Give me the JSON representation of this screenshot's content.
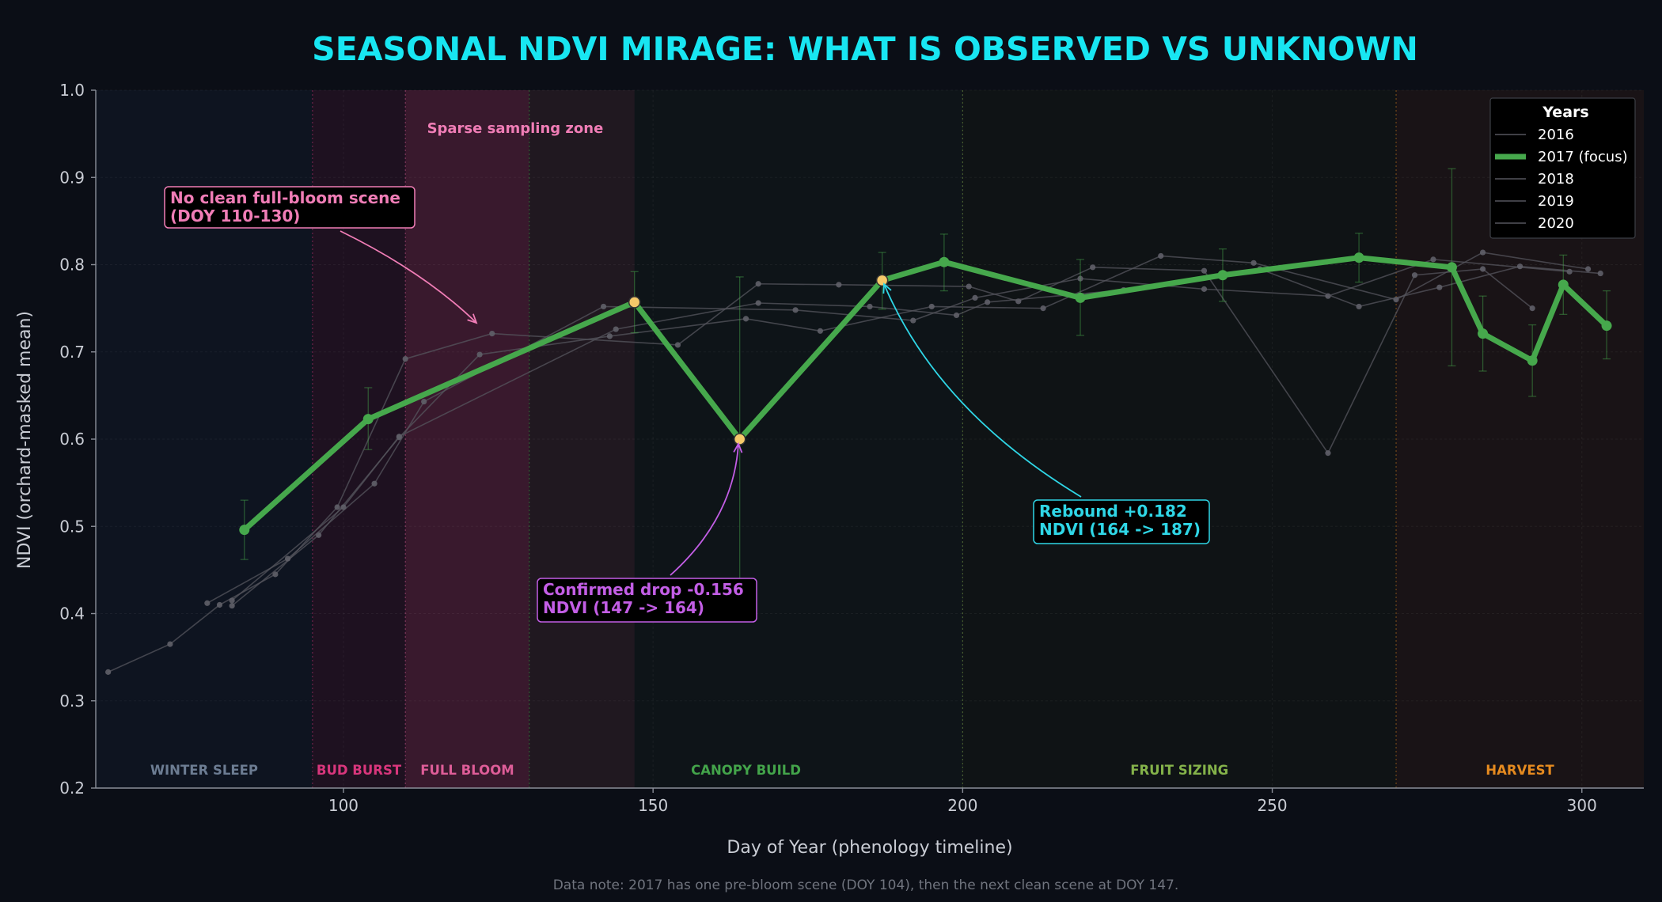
{
  "colors": {
    "background": "#0b0e16",
    "plot_bg": "#0e1218",
    "title": "#18e6f2",
    "focus": "#46a84c",
    "other_years": "#55555e",
    "highlight_point": "#f5c96a",
    "pink": "#f07db6",
    "purple": "#c35ee6",
    "cyan": "#2fd6e6",
    "axis_text": "#c9ccd4",
    "note_text": "#70747e"
  },
  "chart_data": {
    "type": "line",
    "title": "SEASONAL NDVI MIRAGE: WHAT IS OBSERVED VS UNKNOWN",
    "xlabel": "Day of Year (phenology timeline)",
    "ylabel": "NDVI (orchard-masked mean)",
    "xlim": [
      60,
      310
    ],
    "ylim": [
      0.2,
      1.0
    ],
    "xticks": [
      100,
      150,
      200,
      250,
      300
    ],
    "yticks": [
      0.2,
      0.3,
      0.4,
      0.5,
      0.6,
      0.7,
      0.8,
      0.9,
      1.0
    ],
    "grid": true,
    "legend": {
      "title": "Years",
      "position": "top-right"
    },
    "series": [
      {
        "name": "2016",
        "focus": false,
        "x": [
          62,
          72,
          80,
          89,
          99,
          110,
          124,
          154,
          167,
          180,
          201,
          209,
          221,
          239,
          259,
          273,
          284,
          292
        ],
        "y": [
          0.333,
          0.365,
          0.41,
          0.445,
          0.522,
          0.692,
          0.721,
          0.708,
          0.778,
          0.777,
          0.775,
          0.758,
          0.797,
          0.793,
          0.584,
          0.788,
          0.795,
          0.75
        ]
      },
      {
        "name": "2017 (focus)",
        "focus": true,
        "x": [
          84,
          104,
          147,
          164,
          187,
          197,
          219,
          242,
          264,
          279,
          284,
          292,
          297,
          304
        ],
        "y": [
          0.496,
          0.623,
          0.757,
          0.6,
          0.782,
          0.803,
          0.762,
          0.788,
          0.808,
          0.797,
          0.721,
          0.69,
          0.777,
          0.73
        ]
      },
      {
        "name": "2018",
        "focus": false,
        "x": [
          82,
          96,
          109,
          122,
          143,
          165,
          177,
          195,
          213,
          232,
          247,
          270,
          284,
          301
        ],
        "y": [
          0.409,
          0.49,
          0.602,
          0.697,
          0.718,
          0.738,
          0.724,
          0.752,
          0.75,
          0.81,
          0.802,
          0.76,
          0.814,
          0.795
        ]
      },
      {
        "name": "2019",
        "focus": false,
        "x": [
          78,
          91,
          105,
          113,
          142,
          173,
          192,
          202,
          219,
          239,
          259,
          276,
          298
        ],
        "y": [
          0.412,
          0.463,
          0.549,
          0.643,
          0.752,
          0.748,
          0.736,
          0.762,
          0.784,
          0.772,
          0.764,
          0.806,
          0.792
        ]
      },
      {
        "name": "2020",
        "focus": false,
        "x": [
          82,
          100,
          109,
          144,
          167,
          185,
          199,
          204,
          226,
          248,
          264,
          277,
          290,
          303
        ],
        "y": [
          0.415,
          0.522,
          0.603,
          0.726,
          0.756,
          0.752,
          0.742,
          0.757,
          0.771,
          0.795,
          0.752,
          0.774,
          0.798,
          0.79
        ]
      }
    ],
    "error_bars": [
      {
        "x": 84,
        "lo": 0.462,
        "hi": 0.53
      },
      {
        "x": 104,
        "lo": 0.588,
        "hi": 0.659
      },
      {
        "x": 147,
        "lo": 0.722,
        "hi": 0.792
      },
      {
        "x": 164,
        "lo": 0.415,
        "hi": 0.786
      },
      {
        "x": 187,
        "lo": 0.749,
        "hi": 0.814
      },
      {
        "x": 197,
        "lo": 0.77,
        "hi": 0.835
      },
      {
        "x": 219,
        "lo": 0.719,
        "hi": 0.806
      },
      {
        "x": 242,
        "lo": 0.758,
        "hi": 0.818
      },
      {
        "x": 264,
        "lo": 0.78,
        "hi": 0.836
      },
      {
        "x": 279,
        "lo": 0.684,
        "hi": 0.91
      },
      {
        "x": 284,
        "lo": 0.678,
        "hi": 0.764
      },
      {
        "x": 292,
        "lo": 0.649,
        "hi": 0.731
      },
      {
        "x": 297,
        "lo": 0.743,
        "hi": 0.811
      },
      {
        "x": 304,
        "lo": 0.692,
        "hi": 0.77
      }
    ],
    "highlight_points": [
      147,
      164,
      187
    ],
    "phases": [
      {
        "label": "WINTER SLEEP",
        "from": 60,
        "to": 95,
        "color": "#0e1420",
        "text_color": "#6c7c92"
      },
      {
        "label": "BUD BURST",
        "from": 95,
        "to": 110,
        "color": "#1e1120",
        "text_color": "#d8367c"
      },
      {
        "label": "FULL BLOOM",
        "from": 110,
        "to": 130,
        "color": "#291526",
        "text_color": "#de5d98"
      },
      {
        "label": "CANOPY BUILD",
        "from": 130,
        "to": 200,
        "color": "#0e1418",
        "text_color": "#43a44a"
      },
      {
        "label": "FRUIT SIZING",
        "from": 200,
        "to": 270,
        "color": "#0f1315",
        "text_color": "#84b24a"
      },
      {
        "label": "HARVEST",
        "from": 270,
        "to": 310,
        "color": "#191316",
        "text_color": "#e58a1f"
      }
    ],
    "sparse_zone": {
      "from": 110,
      "to": 147,
      "label": "Sparse sampling zone"
    },
    "annotations": [
      {
        "id": "no-bloom",
        "lines": [
          "No clean full-bloom scene",
          "(DOY 110-130)"
        ],
        "target": [
          122,
          0.73
        ],
        "color": "#f07db6"
      },
      {
        "id": "drop",
        "lines": [
          "Confirmed drop -0.156",
          "NDVI (147 -> 164)"
        ],
        "target": [
          164,
          0.6
        ],
        "color": "#c35ee6"
      },
      {
        "id": "rebound",
        "lines": [
          "Rebound +0.182",
          "NDVI (164 -> 187)"
        ],
        "target": [
          187,
          0.782
        ],
        "color": "#2fd6e6"
      }
    ]
  },
  "footnote": "Data note: 2017 has one pre-bloom scene (DOY 104), then the next clean scene at DOY 147."
}
